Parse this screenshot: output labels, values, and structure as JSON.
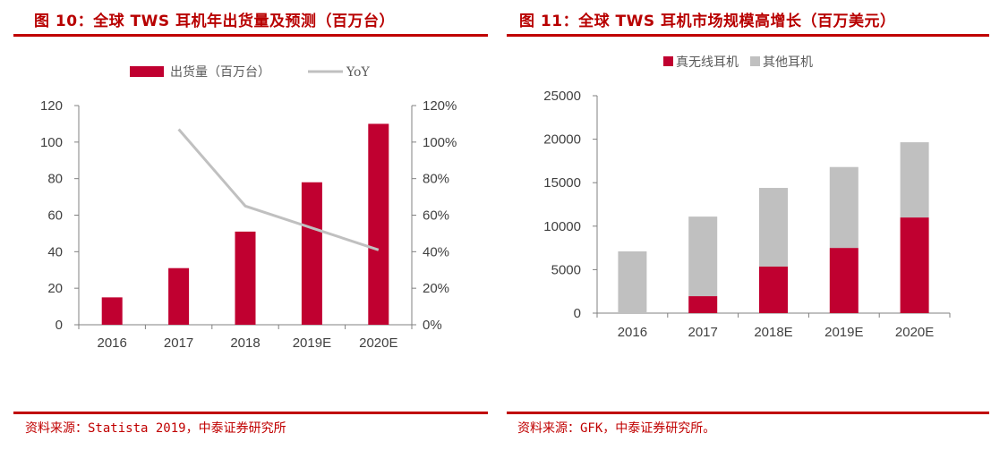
{
  "colors": {
    "accent": "#c00000",
    "bar": "#c00030",
    "line": "#c0c0c0",
    "other": "#c0c0c0",
    "axis": "#808080"
  },
  "chart_data": [
    {
      "type": "bar",
      "title": "图 10：全球 TWS 耳机年出货量及预测（百万台）",
      "source": "资料来源：Statista 2019，中泰证券研究所",
      "categories": [
        "2016",
        "2017",
        "2018",
        "2019E",
        "2020E"
      ],
      "series": [
        {
          "name": "出货量（百万台）",
          "type": "bar",
          "axis": "left",
          "values": [
            15,
            31,
            51,
            78,
            110
          ]
        },
        {
          "name": "YoY",
          "type": "line",
          "axis": "right",
          "values": [
            null,
            1.07,
            0.65,
            0.53,
            0.41
          ]
        }
      ],
      "ylim": [
        0,
        120
      ],
      "yticks": [
        "0",
        "20",
        "40",
        "60",
        "80",
        "100",
        "120"
      ],
      "y2lim": [
        0,
        1.2
      ],
      "y2ticks": [
        "0%",
        "20%",
        "40%",
        "60%",
        "80%",
        "100%",
        "120%"
      ],
      "legend": "top",
      "grid": false
    },
    {
      "type": "bar",
      "stacked": true,
      "title": "图 11：全球 TWS 耳机市场规模高增长（百万美元）",
      "source": "资料来源：GFK，中泰证券研究所。",
      "categories": [
        "2016",
        "2017",
        "2018E",
        "2019E",
        "2020E"
      ],
      "series": [
        {
          "name": "真无线耳机",
          "values": [
            0,
            1950,
            5350,
            7500,
            11000
          ]
        },
        {
          "name": "其他耳机",
          "values": [
            7100,
            9150,
            9050,
            9300,
            8650
          ]
        }
      ],
      "ylim": [
        0,
        25000
      ],
      "yticks": [
        "0",
        "5000",
        "10000",
        "15000",
        "20000",
        "25000"
      ],
      "legend": "top",
      "grid": false
    }
  ]
}
